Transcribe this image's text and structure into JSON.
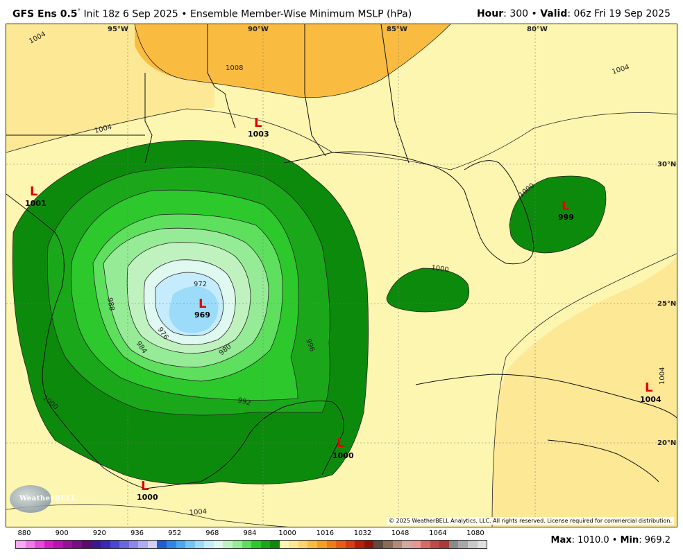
{
  "header": {
    "model": "GFS Ens 0.5",
    "degree": "°",
    "init": "Init 18z 6 Sep 2025",
    "separator": "•",
    "product": "Ensemble Member-Wise Minimum MSLP (hPa)",
    "hour_label": "Hour",
    "hour_value": ": 300",
    "valid_label": "Valid",
    "valid_value": ": 06z Fri 19 Sep 2025"
  },
  "map": {
    "longitude_labels": [
      "95°W",
      "90°W",
      "85°W",
      "80°W"
    ],
    "latitude_labels": [
      "30°N",
      "25°N",
      "20°N"
    ],
    "contour_labels": [
      "1004",
      "1008",
      "1004",
      "1004",
      "1000",
      "1000",
      "1000",
      "1004",
      "972",
      "976",
      "980",
      "984",
      "988",
      "992",
      "996",
      "1004"
    ],
    "lows": [
      {
        "symbol": "L",
        "value": "1003"
      },
      {
        "symbol": "L",
        "value": "1001"
      },
      {
        "symbol": "L",
        "value": "969"
      },
      {
        "symbol": "L",
        "value": "999"
      },
      {
        "symbol": "L",
        "value": "1004"
      },
      {
        "symbol": "L",
        "value": "1000"
      },
      {
        "symbol": "L",
        "value": "1000"
      }
    ],
    "copyright": "© 2025 WeatherBELL Analytics, LLC. All rights reserved. License required for commercial distribution.",
    "logo_text": "WeatherBELL"
  },
  "colorbar": {
    "labels": [
      "880",
      "900",
      "920",
      "936",
      "952",
      "968",
      "984",
      "1000",
      "1016",
      "1032",
      "1048",
      "1064",
      "1080"
    ],
    "colors": [
      "#f7a8f2",
      "#f07ae8",
      "#e848dc",
      "#d81cc8",
      "#b812b0",
      "#96109a",
      "#7a0c84",
      "#5c0a6e",
      "#3c1890",
      "#3a28b8",
      "#4a46d0",
      "#6a66dc",
      "#8c88e6",
      "#b0acf0",
      "#d2d0f6",
      "#1e5fd8",
      "#2f86e6",
      "#49a8f0",
      "#74c4f6",
      "#9cdcfa",
      "#c4ecfc",
      "#dff8f0",
      "#c0f2c0",
      "#96ec96",
      "#5ee05e",
      "#2cc82c",
      "#1aa81a",
      "#0c8a0c",
      "#fdf6b0",
      "#fde896",
      "#fbd46e",
      "#f9bc40",
      "#f4a020",
      "#f07c18",
      "#e85c14",
      "#d83c10",
      "#b81c0c",
      "#8c1408",
      "#5e4a40",
      "#8a6a58",
      "#b08a76",
      "#d2a8a0",
      "#e89892",
      "#d86a66",
      "#c04a48",
      "#a83a38",
      "#8a8a8a",
      "#a8a8a8",
      "#c8c8c8",
      "#e0e0e0"
    ]
  },
  "stats": {
    "max_label": "Max",
    "max_value": ": 1010.0",
    "separator": "•",
    "min_label": "Min",
    "min_value": ": 969.2"
  }
}
